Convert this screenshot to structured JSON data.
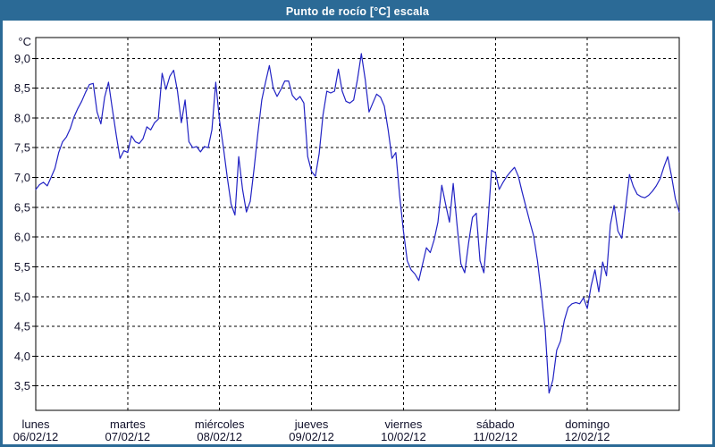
{
  "window": {
    "title": "Punto de rocío [°C] escala"
  },
  "colors": {
    "titlebar": "#2b6a96",
    "window_border": "#2b6a96",
    "background": "#ffffff",
    "grid": "#000000",
    "plot_border": "#000000",
    "text": "#10102a",
    "series": "#2122c4"
  },
  "chart_data": {
    "type": "line",
    "title": "Punto de rocío [°C] escala",
    "grid": "dashed",
    "legend": "none",
    "y_axis": {
      "unit": "°C",
      "range": [
        3.09,
        9.35
      ],
      "decimal_separator": ",",
      "ticks": [
        {
          "value": 9.0,
          "label": "9,0"
        },
        {
          "value": 8.5,
          "label": "8,5"
        },
        {
          "value": 8.0,
          "label": "8,0"
        },
        {
          "value": 7.5,
          "label": "7,5"
        },
        {
          "value": 7.0,
          "label": "7,0"
        },
        {
          "value": 6.5,
          "label": "6,5"
        },
        {
          "value": 6.0,
          "label": "6,0"
        },
        {
          "value": 5.5,
          "label": "5,5"
        },
        {
          "value": 5.0,
          "label": "5,0"
        },
        {
          "value": 4.5,
          "label": "4,5"
        },
        {
          "value": 4.0,
          "label": "4,0"
        },
        {
          "value": 3.5,
          "label": "3,5"
        }
      ]
    },
    "x_axis": {
      "points_per_day": 24,
      "sampling": "hourly",
      "days": [
        {
          "name": "lunes",
          "date": "06/02/12"
        },
        {
          "name": "martes",
          "date": "07/02/12"
        },
        {
          "name": "miércoles",
          "date": "08/02/12"
        },
        {
          "name": "jueves",
          "date": "09/02/12"
        },
        {
          "name": "viernes",
          "date": "10/02/12"
        },
        {
          "name": "sábado",
          "date": "11/02/12"
        },
        {
          "name": "domingo",
          "date": "12/02/12"
        }
      ]
    },
    "series": [
      {
        "name": "Punto de rocío [°C]",
        "color": "#2122c4",
        "values": [
          6.8,
          6.88,
          6.92,
          6.86,
          7.0,
          7.15,
          7.42,
          7.6,
          7.68,
          7.82,
          8.02,
          8.16,
          8.28,
          8.43,
          8.56,
          8.58,
          8.1,
          7.9,
          8.35,
          8.6,
          8.15,
          7.72,
          7.32,
          7.45,
          7.42,
          7.7,
          7.6,
          7.57,
          7.65,
          7.85,
          7.8,
          7.92,
          7.98,
          8.75,
          8.48,
          8.7,
          8.8,
          8.45,
          7.92,
          8.3,
          7.6,
          7.5,
          7.52,
          7.43,
          7.52,
          7.5,
          7.8,
          8.6,
          7.95,
          7.5,
          7.0,
          6.55,
          6.37,
          7.35,
          6.8,
          6.42,
          6.6,
          7.15,
          7.75,
          8.3,
          8.6,
          8.88,
          8.5,
          8.36,
          8.48,
          8.62,
          8.62,
          8.38,
          8.3,
          8.36,
          8.25,
          7.35,
          7.1,
          7.02,
          7.4,
          8.05,
          8.45,
          8.42,
          8.45,
          8.82,
          8.45,
          8.28,
          8.25,
          8.3,
          8.65,
          9.08,
          8.65,
          8.1,
          8.25,
          8.4,
          8.35,
          8.2,
          7.8,
          7.32,
          7.42,
          6.7,
          6.1,
          5.6,
          5.45,
          5.38,
          5.27,
          5.55,
          5.82,
          5.74,
          5.95,
          6.25,
          6.87,
          6.55,
          6.25,
          6.9,
          6.2,
          5.55,
          5.4,
          5.9,
          6.33,
          6.4,
          5.6,
          5.4,
          6.2,
          7.12,
          7.08,
          6.8,
          6.92,
          7.02,
          7.1,
          7.17,
          7.02,
          6.75,
          6.5,
          6.25,
          6.02,
          5.6,
          5.05,
          4.45,
          3.38,
          3.6,
          4.1,
          4.25,
          4.6,
          4.82,
          4.88,
          4.9,
          4.88,
          4.98,
          4.8,
          5.18,
          5.45,
          5.08,
          5.58,
          5.35,
          6.2,
          6.53,
          6.1,
          5.98,
          6.5,
          7.05,
          6.85,
          6.72,
          6.68,
          6.66,
          6.7,
          6.77,
          6.86,
          6.98,
          7.18,
          7.35,
          7.02,
          6.64,
          6.42
        ]
      }
    ]
  }
}
